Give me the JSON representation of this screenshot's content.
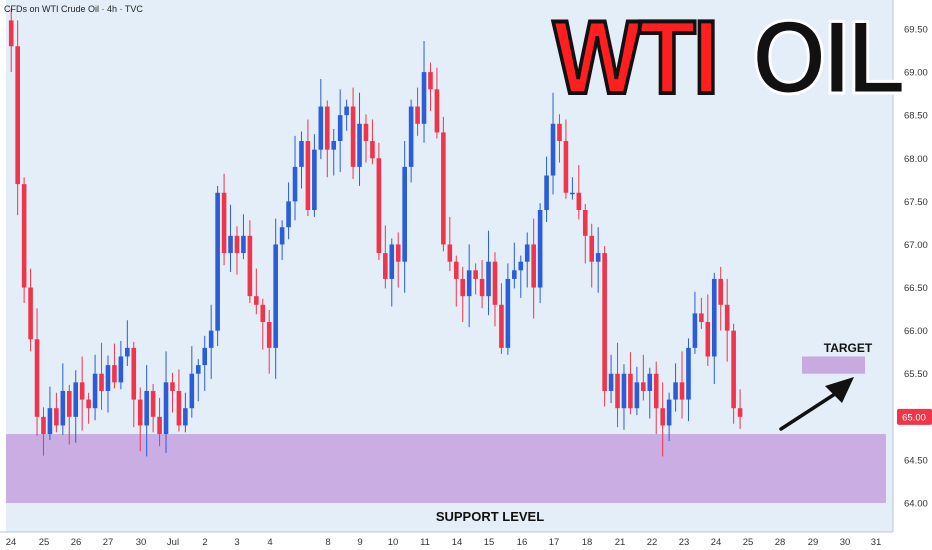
{
  "header": {
    "source": "CFDs on WTI Crude Oil · 4h · TVC"
  },
  "overlay": {
    "title_part1": "WTI",
    "title_part2": "OIL"
  },
  "annotations": {
    "support_label": "SUPPORT LEVEL",
    "target_label": "TARGET",
    "price_tag": "65.00"
  },
  "colors": {
    "background": "#e3eef8",
    "up": "#2a5dd6",
    "down": "#f0344a",
    "zone": "#c8a9e0",
    "arrow": "#111111",
    "price_tag": "#f0344a"
  },
  "chart_data": {
    "type": "candlestick",
    "title": "CFDs on WTI Crude Oil · 4h · TVC",
    "ylim": [
      63.95,
      69.7
    ],
    "y_ticks": [
      "69.50",
      "69.00",
      "68.50",
      "68.00",
      "67.50",
      "67.00",
      "66.50",
      "66.00",
      "65.50",
      "65.00",
      "64.50",
      "64.00"
    ],
    "x_ticks": [
      "24",
      "25",
      "26",
      "27",
      "30",
      "Jul",
      "2",
      "3",
      "4",
      "8",
      "9",
      "10",
      "11",
      "14",
      "15",
      "16",
      "17",
      "18",
      "21",
      "22",
      "23",
      "24",
      "25",
      "28",
      "29",
      "30",
      "31"
    ],
    "last_price": 65.0,
    "support_zone": [
      64.0,
      64.8
    ],
    "target_zone": [
      65.5,
      65.7
    ],
    "series": [
      {
        "closes": [
          69.3,
          67.7,
          66.5,
          65.9,
          65.0,
          64.8,
          65.1,
          64.9,
          65.3,
          65.0,
          65.4,
          65.2,
          65.1,
          65.5,
          65.3,
          65.6,
          65.4,
          65.7,
          65.8,
          65.2,
          64.9,
          65.3,
          65.0,
          64.8,
          65.4,
          65.3,
          64.9,
          65.1,
          65.5,
          65.6,
          65.8,
          66.0,
          67.6,
          66.9,
          67.1,
          66.9,
          67.1,
          66.4,
          66.3,
          66.1,
          65.8,
          67.0,
          67.2,
          67.5,
          67.9,
          68.2,
          67.4,
          68.1,
          68.6,
          68.1,
          68.2,
          68.5,
          68.6,
          67.9,
          68.4,
          68.2,
          68.0,
          66.9,
          66.6,
          67.0,
          66.8,
          67.9,
          68.6,
          68.4,
          69.0,
          68.8,
          68.3,
          67.0,
          66.8,
          66.6,
          66.4,
          66.7,
          66.6,
          66.4,
          66.8,
          66.3,
          65.8,
          66.6,
          66.7,
          66.8,
          67.0,
          66.5,
          67.4,
          67.8,
          68.4,
          68.2,
          67.6,
          67.6,
          67.4,
          67.1,
          66.8,
          66.9,
          65.3,
          65.5,
          65.1,
          65.5,
          65.1,
          65.4,
          65.3,
          65.5,
          65.1,
          64.9,
          65.2,
          65.4,
          65.2,
          65.8,
          66.2,
          66.1,
          65.7,
          66.6,
          66.3,
          66.0,
          65.1,
          65.0
        ]
      }
    ]
  }
}
